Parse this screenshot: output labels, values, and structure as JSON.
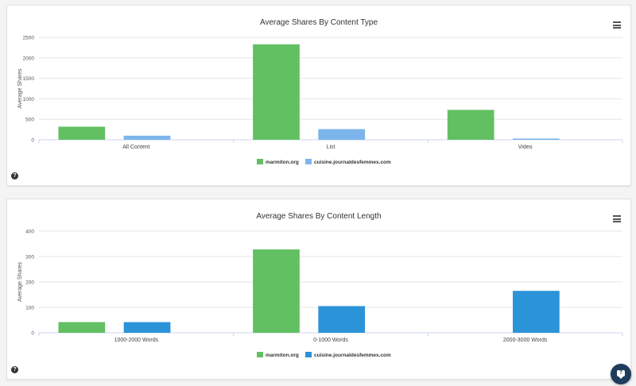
{
  "chart_data": [
    {
      "type": "bar",
      "title": "Average Shares By Content Type",
      "ylabel": "Average Shares",
      "xlabel": "",
      "ylim": [
        0,
        2500
      ],
      "yticks": [
        0,
        500,
        1000,
        1500,
        2000,
        2500
      ],
      "categories": [
        "All Content",
        "List",
        "Video"
      ],
      "series": [
        {
          "name": "marmiton.org",
          "color": "#62c062",
          "values": [
            320,
            2330,
            730
          ]
        },
        {
          "name": "cuisine.journaldesfemmes.com",
          "color": "#7cb5ec",
          "values": [
            100,
            260,
            30
          ]
        }
      ],
      "legend": "bottom-center",
      "grid": true
    },
    {
      "type": "bar",
      "title": "Average Shares By Content Length",
      "ylabel": "Average Shares",
      "xlabel": "",
      "ylim": [
        0,
        400
      ],
      "yticks": [
        0,
        100,
        200,
        300,
        400
      ],
      "categories": [
        "1000-2000 Words",
        "0-1000 Words",
        "2000-3000 Words"
      ],
      "series": [
        {
          "name": "marmiton.org",
          "color": "#62c062",
          "values": [
            42,
            328,
            0
          ]
        },
        {
          "name": "cuisine.journaldesfemmes.com",
          "color": "#2b93d8",
          "values": [
            42,
            105,
            165
          ]
        }
      ],
      "legend": "bottom-center",
      "grid": true
    }
  ],
  "ui": {
    "help_glyph": "?",
    "chat_glyph": "?"
  }
}
